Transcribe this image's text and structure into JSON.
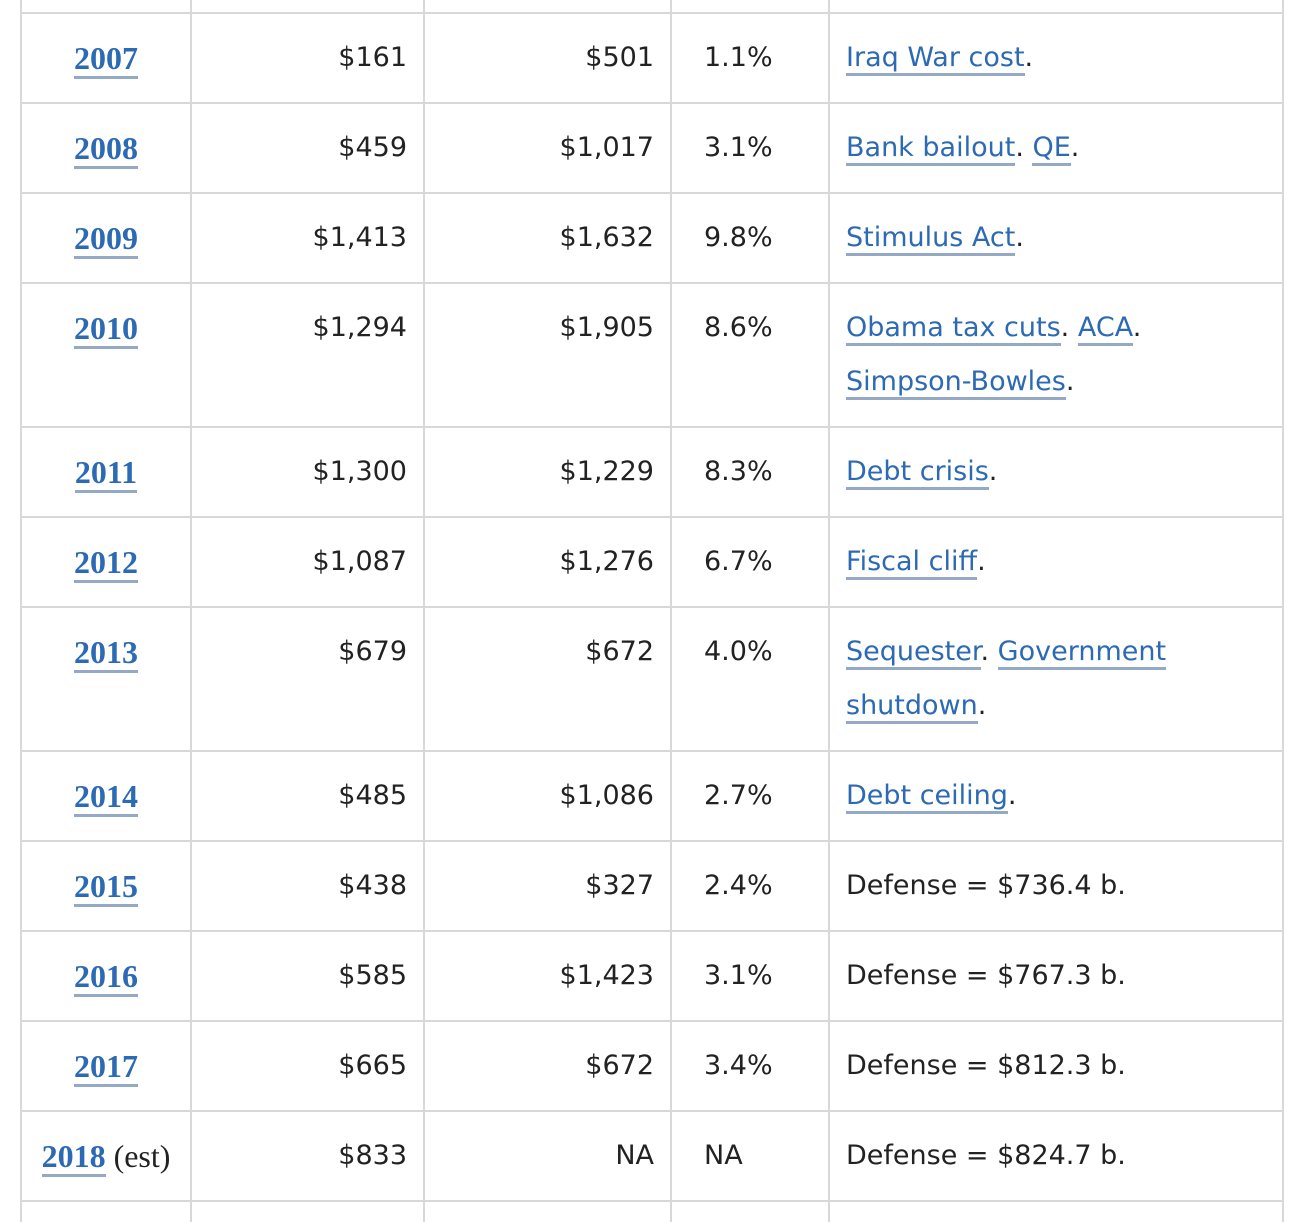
{
  "colors": {
    "link": "#2c6ab3",
    "link_underline": "#93a9c6",
    "border": "#d8d8d8",
    "text": "#222222"
  },
  "rows": [
    {
      "year": "2007",
      "suffix": "",
      "deficit": "$161",
      "debt": "$501",
      "growth": "1.1%",
      "note": [
        {
          "text": "Iraq War cost",
          "link": true
        },
        {
          "text": ".",
          "link": false
        }
      ]
    },
    {
      "year": "2008",
      "suffix": "",
      "deficit": "$459",
      "debt": "$1,017",
      "growth": "3.1%",
      "note": [
        {
          "text": "Bank bailout",
          "link": true
        },
        {
          "text": ". ",
          "link": false
        },
        {
          "text": "QE",
          "link": true
        },
        {
          "text": ".",
          "link": false
        }
      ]
    },
    {
      "year": "2009",
      "suffix": "",
      "deficit": "$1,413",
      "debt": "$1,632",
      "growth": "9.8%",
      "note": [
        {
          "text": "Stimulus Act",
          "link": true
        },
        {
          "text": ".",
          "link": false
        }
      ]
    },
    {
      "year": "2010",
      "suffix": "",
      "deficit": "$1,294",
      "debt": "$1,905",
      "growth": "8.6%",
      "note": [
        {
          "text": "Obama tax cuts",
          "link": true
        },
        {
          "text": ". ",
          "link": false
        },
        {
          "text": "ACA",
          "link": true
        },
        {
          "text": ". ",
          "link": false
        },
        {
          "text": "Simpson-Bowles",
          "link": true
        },
        {
          "text": ".",
          "link": false
        }
      ]
    },
    {
      "year": "2011",
      "suffix": "",
      "deficit": "$1,300",
      "debt": "$1,229",
      "growth": "8.3%",
      "note": [
        {
          "text": "Debt crisis",
          "link": true
        },
        {
          "text": ".",
          "link": false
        }
      ]
    },
    {
      "year": "2012",
      "suffix": "",
      "deficit": "$1,087",
      "debt": "$1,276",
      "growth": "6.7%",
      "note": [
        {
          "text": "Fiscal cliff",
          "link": true
        },
        {
          "text": ".",
          "link": false
        }
      ]
    },
    {
      "year": "2013",
      "suffix": "",
      "deficit": "$679",
      "debt": "$672",
      "growth": "4.0%",
      "note": [
        {
          "text": "Sequester",
          "link": true
        },
        {
          "text": ". ",
          "link": false
        },
        {
          "text": "Government shutdown",
          "link": true
        },
        {
          "text": ".",
          "link": false
        }
      ]
    },
    {
      "year": "2014",
      "suffix": "",
      "deficit": "$485",
      "debt": "$1,086",
      "growth": "2.7%",
      "note": [
        {
          "text": "Debt ceiling",
          "link": true
        },
        {
          "text": ".",
          "link": false
        }
      ]
    },
    {
      "year": "2015",
      "suffix": "",
      "deficit": "$438",
      "debt": "$327",
      "growth": "2.4%",
      "note": [
        {
          "text": "Defense = $736.4 b.",
          "link": false
        }
      ]
    },
    {
      "year": "2016",
      "suffix": "",
      "deficit": "$585",
      "debt": "$1,423",
      "growth": "3.1%",
      "note": [
        {
          "text": "Defense = $767.3 b.",
          "link": false
        }
      ]
    },
    {
      "year": "2017",
      "suffix": "",
      "deficit": "$665",
      "debt": "$672",
      "growth": "3.4%",
      "note": [
        {
          "text": "Defense = $812.3 b.",
          "link": false
        }
      ]
    },
    {
      "year": "2018",
      "suffix": " (est)",
      "deficit": "$833",
      "debt": "NA",
      "growth": "NA",
      "note": [
        {
          "text": "Defense = $824.7 b.",
          "link": false
        }
      ]
    }
  ]
}
